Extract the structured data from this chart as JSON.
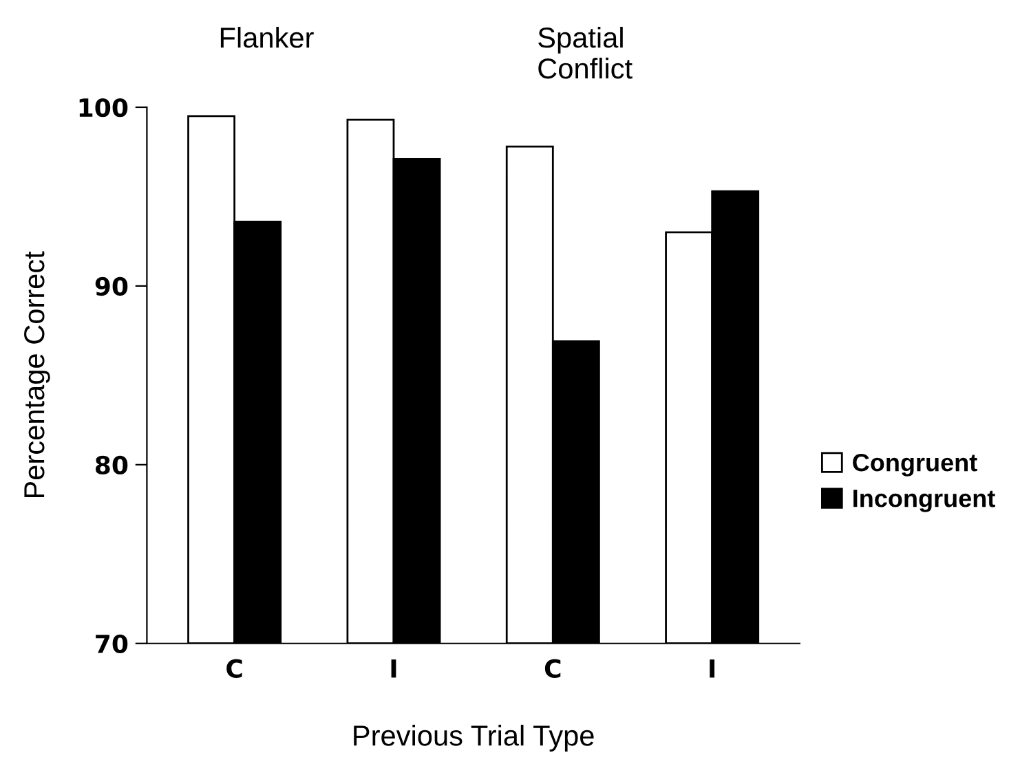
{
  "chart_data": {
    "type": "bar",
    "categories": [
      "C",
      "I",
      "C",
      "I"
    ],
    "series": [
      {
        "name": "Congruent",
        "color": "#ffffff",
        "values": [
          99.5,
          99.3,
          97.8,
          93.0
        ]
      },
      {
        "name": "Incongruent",
        "color": "#000000",
        "values": [
          93.6,
          97.1,
          86.9,
          95.3
        ]
      }
    ],
    "xlabel": "Previous Trial Type",
    "ylabel": "Percentage Correct",
    "annotations": [
      "Flanker",
      "Spatial\nConflict"
    ],
    "ylim": [
      70,
      100
    ],
    "yticks": [
      70,
      80,
      90,
      100
    ],
    "grid": false,
    "legend": "right"
  }
}
